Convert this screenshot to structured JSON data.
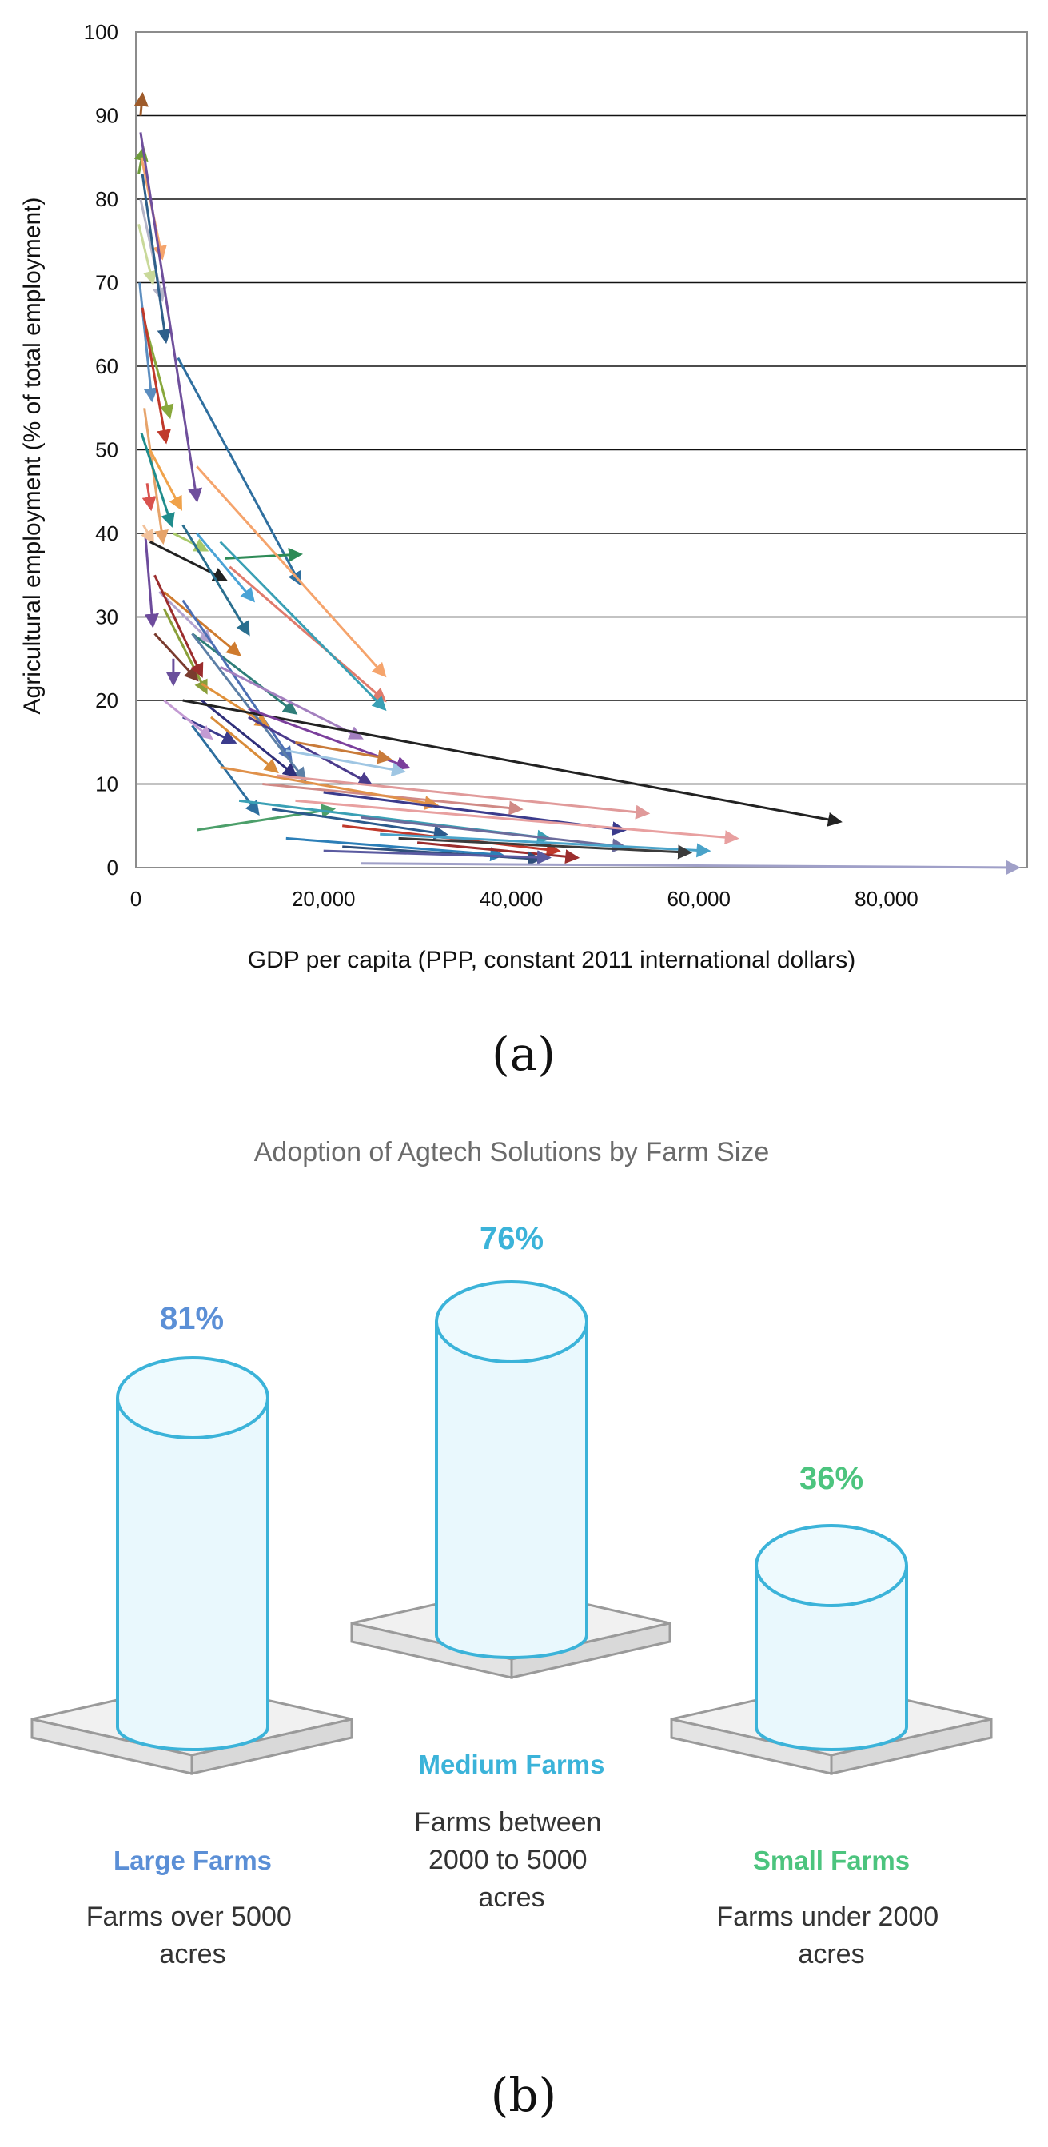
{
  "chart_data": [
    {
      "type": "line",
      "panel_label": "(a)",
      "ylabel": "Agricultural employment (% of total employment)",
      "xlabel": "GDP per capita (PPP, constant 2011 international dollars)",
      "xlim": [
        0,
        95000
      ],
      "ylim": [
        0,
        100
      ],
      "x_ticks": [
        0,
        20000,
        40000,
        60000,
        80000
      ],
      "x_tick_labels": [
        "0",
        "20,000",
        "40,000",
        "60,000",
        "80,000"
      ],
      "y_ticks": [
        0,
        10,
        20,
        30,
        40,
        50,
        60,
        70,
        80,
        90,
        100
      ],
      "y_tick_labels": [
        "0",
        "10",
        "20",
        "30",
        "40",
        "50",
        "60",
        "70",
        "80",
        "90",
        "100"
      ],
      "grid": true,
      "note": "Each series is a country trajectory (start point to arrowhead end point).",
      "series": [
        {
          "color": "#9e5b2a",
          "x": [
            500,
            700
          ],
          "y": [
            90,
            92.5
          ]
        },
        {
          "color": "#6d9c3a",
          "x": [
            300,
            800
          ],
          "y": [
            83,
            86
          ]
        },
        {
          "color": "#f5a46c",
          "x": [
            600,
            2800
          ],
          "y": [
            85,
            73
          ]
        },
        {
          "color": "#b5b5c8",
          "x": [
            500,
            2800
          ],
          "y": [
            80,
            68
          ]
        },
        {
          "color": "#c9d99a",
          "x": [
            300,
            1800
          ],
          "y": [
            77,
            70
          ]
        },
        {
          "color": "#2e5f8a",
          "x": [
            700,
            3200
          ],
          "y": [
            83,
            63
          ]
        },
        {
          "color": "#5b8dbf",
          "x": [
            400,
            1700
          ],
          "y": [
            70,
            56
          ]
        },
        {
          "color": "#88a83c",
          "x": [
            1000,
            3600
          ],
          "y": [
            65,
            54
          ]
        },
        {
          "color": "#6f4f9c",
          "x": [
            500,
            6500
          ],
          "y": [
            88,
            44
          ]
        },
        {
          "color": "#2f6f9f",
          "x": [
            4500,
            17500
          ],
          "y": [
            61,
            34
          ]
        },
        {
          "color": "#c0392b",
          "x": [
            700,
            3200
          ],
          "y": [
            67,
            51
          ]
        },
        {
          "color": "#d9534f",
          "x": [
            1200,
            1600
          ],
          "y": [
            46,
            43
          ]
        },
        {
          "color": "#e6a36a",
          "x": [
            900,
            2900
          ],
          "y": [
            55,
            39
          ]
        },
        {
          "color": "#f0a24a",
          "x": [
            1500,
            4800
          ],
          "y": [
            50,
            43
          ]
        },
        {
          "color": "#1f8c8c",
          "x": [
            600,
            3800
          ],
          "y": [
            52,
            41
          ]
        },
        {
          "color": "#6d4b9c",
          "x": [
            1000,
            1800
          ],
          "y": [
            40,
            29
          ]
        },
        {
          "color": "#f2c19a",
          "x": [
            800,
            1800
          ],
          "y": [
            41,
            39
          ]
        },
        {
          "color": "#222222",
          "x": [
            1500,
            9500
          ],
          "y": [
            39,
            34.5
          ]
        },
        {
          "color": "#2e8b57",
          "x": [
            9500,
            17500
          ],
          "y": [
            37,
            37.5
          ]
        },
        {
          "color": "#a8c96b",
          "x": [
            4000,
            7500
          ],
          "y": [
            40,
            38
          ]
        },
        {
          "color": "#f5a46c",
          "x": [
            6500,
            26500
          ],
          "y": [
            48,
            23
          ]
        },
        {
          "color": "#e07b6c",
          "x": [
            10000,
            26500
          ],
          "y": [
            36,
            20
          ]
        },
        {
          "color": "#3aa0b5",
          "x": [
            9000,
            26500
          ],
          "y": [
            39,
            19
          ]
        },
        {
          "color": "#2a6f8f",
          "x": [
            5000,
            12000
          ],
          "y": [
            41,
            28
          ]
        },
        {
          "color": "#4aa3d6",
          "x": [
            6500,
            12500
          ],
          "y": [
            40,
            32
          ]
        },
        {
          "color": "#b3a3cf",
          "x": [
            2500,
            8000
          ],
          "y": [
            33,
            27
          ]
        },
        {
          "color": "#cf7b2e",
          "x": [
            3000,
            11000
          ],
          "y": [
            33,
            25.5
          ]
        },
        {
          "color": "#8a9f3a",
          "x": [
            3000,
            7500
          ],
          "y": [
            31,
            21
          ]
        },
        {
          "color": "#7a3b2e",
          "x": [
            2000,
            6500
          ],
          "y": [
            28,
            22.5
          ]
        },
        {
          "color": "#6a4f9c",
          "x": [
            4000,
            4000
          ],
          "y": [
            25,
            22
          ]
        },
        {
          "color": "#2f7e79",
          "x": [
            6000,
            17000
          ],
          "y": [
            28,
            18.5
          ]
        },
        {
          "color": "#4d6fb3",
          "x": [
            5000,
            16500
          ],
          "y": [
            32,
            13
          ]
        },
        {
          "color": "#e0913b",
          "x": [
            7000,
            14000
          ],
          "y": [
            22,
            17
          ]
        },
        {
          "color": "#a37fbf",
          "x": [
            9000,
            24000
          ],
          "y": [
            24,
            15.5
          ]
        },
        {
          "color": "#5c7fa6",
          "x": [
            6000,
            18000
          ],
          "y": [
            28,
            10.5
          ]
        },
        {
          "color": "#9b2d2d",
          "x": [
            2000,
            7000
          ],
          "y": [
            35,
            23
          ]
        },
        {
          "color": "#3b3b8c",
          "x": [
            5000,
            10500
          ],
          "y": [
            18,
            15
          ]
        },
        {
          "color": "#c39bd3",
          "x": [
            3000,
            8000
          ],
          "y": [
            20,
            15.5
          ]
        },
        {
          "color": "#2f2f7a",
          "x": [
            7000,
            17000
          ],
          "y": [
            20,
            11
          ]
        },
        {
          "color": "#d98c3a",
          "x": [
            8000,
            15000
          ],
          "y": [
            18,
            11.5
          ]
        },
        {
          "color": "#222222",
          "x": [
            5000,
            75000
          ],
          "y": [
            20,
            5.5
          ]
        },
        {
          "color": "#7b3f9c",
          "x": [
            12000,
            29000
          ],
          "y": [
            19,
            12
          ]
        },
        {
          "color": "#4b3b8c",
          "x": [
            12000,
            25000
          ],
          "y": [
            18,
            10
          ]
        },
        {
          "color": "#9fc6e3",
          "x": [
            16000,
            28500
          ],
          "y": [
            14,
            11.5
          ]
        },
        {
          "color": "#c97b3a",
          "x": [
            17000,
            27000
          ],
          "y": [
            15,
            13
          ]
        },
        {
          "color": "#2e6f9f",
          "x": [
            6000,
            13000
          ],
          "y": [
            17,
            6.5
          ]
        },
        {
          "color": "#d08a86",
          "x": [
            13500,
            41000
          ],
          "y": [
            10,
            7
          ]
        },
        {
          "color": "#e0914a",
          "x": [
            9000,
            32000
          ],
          "y": [
            12,
            7.5
          ]
        },
        {
          "color": "#e09a9a",
          "x": [
            15000,
            54500
          ],
          "y": [
            11,
            6.5
          ]
        },
        {
          "color": "#3b3b8c",
          "x": [
            20000,
            52000
          ],
          "y": [
            9,
            4.5
          ]
        },
        {
          "color": "#e8a0a0",
          "x": [
            17000,
            64000
          ],
          "y": [
            8,
            3.5
          ]
        },
        {
          "color": "#4c9f6a",
          "x": [
            6500,
            21000
          ],
          "y": [
            4.5,
            7
          ]
        },
        {
          "color": "#3aa0b5",
          "x": [
            11000,
            44000
          ],
          "y": [
            8,
            3.5
          ]
        },
        {
          "color": "#2c5a8c",
          "x": [
            14500,
            33000
          ],
          "y": [
            7,
            4
          ]
        },
        {
          "color": "#6c6c9c",
          "x": [
            24000,
            52000
          ],
          "y": [
            6,
            2.5
          ]
        },
        {
          "color": "#c0392b",
          "x": [
            22000,
            45000
          ],
          "y": [
            5,
            2
          ]
        },
        {
          "color": "#4aa3c9",
          "x": [
            26000,
            61000
          ],
          "y": [
            4,
            2
          ]
        },
        {
          "color": "#3b3b3b",
          "x": [
            28000,
            59000
          ],
          "y": [
            3.5,
            1.8
          ]
        },
        {
          "color": "#2c7fb8",
          "x": [
            16000,
            39000
          ],
          "y": [
            3.5,
            1.5
          ]
        },
        {
          "color": "#9b2d2d",
          "x": [
            30000,
            47000
          ],
          "y": [
            3,
            1.2
          ]
        },
        {
          "color": "#2f4f7a",
          "x": [
            22000,
            43000
          ],
          "y": [
            2.5,
            1
          ]
        },
        {
          "color": "#5a5aa0",
          "x": [
            20000,
            44000
          ],
          "y": [
            2,
            1.2
          ]
        },
        {
          "color": "#a0a0c8",
          "x": [
            24000,
            94000
          ],
          "y": [
            0.5,
            0
          ]
        }
      ]
    },
    {
      "type": "bar",
      "panel_label": "(b)",
      "title": "Adoption of Agtech Solutions by Farm Size",
      "categories": [
        "Large Farms",
        "Medium Farms",
        "Small Farms"
      ],
      "values": [
        81,
        76,
        36
      ],
      "value_labels": [
        "81%",
        "76%",
        "36%"
      ],
      "descriptions": [
        [
          "Farms over 5000",
          "acres"
        ],
        [
          "Farms between",
          "2000 to 5000",
          "acres"
        ],
        [
          "Farms under 2000",
          "acres"
        ]
      ],
      "colors": {
        "large": "#5b8fd6",
        "medium": "#3bb3d9",
        "small": "#4cc47e",
        "cylinder_fill": "#e9f8fd",
        "cylinder_stroke": "#3bb3d9",
        "platform_fill": "#f1f1f1",
        "platform_stroke": "#9a9a9a"
      }
    }
  ]
}
